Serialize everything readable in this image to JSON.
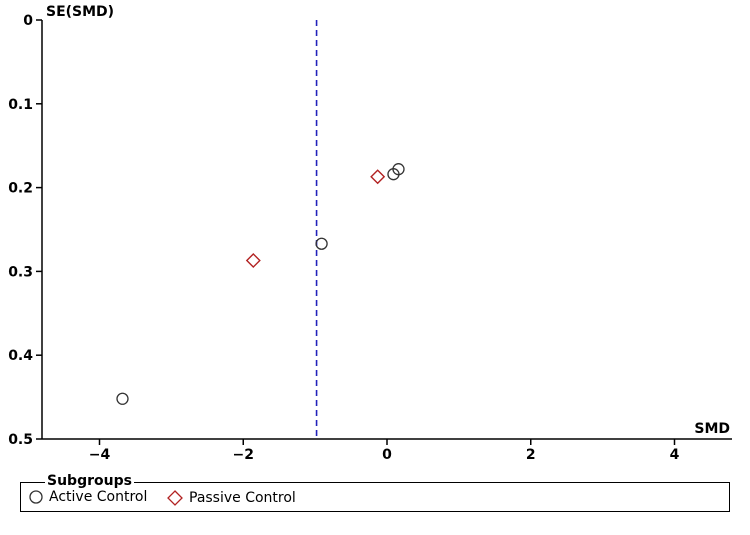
{
  "chart_data": {
    "type": "scatter",
    "xlabel": "SMD",
    "ylabel": "SE(SMD)",
    "xlim": [
      -4.8,
      4.8
    ],
    "ylim": [
      0,
      0.5
    ],
    "y_inverted": true,
    "x_ticks": [
      -4,
      -2,
      0,
      2,
      4
    ],
    "x_tick_labels": [
      "-4",
      "-2",
      "0",
      "2",
      "4"
    ],
    "y_ticks": [
      0,
      0.1,
      0.2,
      0.3,
      0.4,
      0.5
    ],
    "y_tick_labels": [
      "0",
      "0.1",
      "0.2",
      "0.3",
      "0.4",
      "0.5"
    ],
    "reference_line": {
      "x": -0.98,
      "style": "dashed",
      "color": "#2222bb"
    },
    "grid": false,
    "legend_position": "bottom",
    "series": [
      {
        "name": "Active Control",
        "marker": "circle",
        "color": "#333333",
        "points": [
          {
            "x": -3.68,
            "y": 0.452
          },
          {
            "x": -0.91,
            "y": 0.267
          },
          {
            "x": 0.09,
            "y": 0.184
          },
          {
            "x": 0.16,
            "y": 0.178
          }
        ]
      },
      {
        "name": "Passive Control",
        "marker": "diamond",
        "color": "#b22222",
        "points": [
          {
            "x": -1.86,
            "y": 0.287
          },
          {
            "x": -0.13,
            "y": 0.187
          }
        ]
      }
    ]
  },
  "legend": {
    "title": "Subgroups",
    "items": [
      {
        "label": "Active Control",
        "marker": "circle-icon",
        "color": "#333333"
      },
      {
        "label": "Passive Control",
        "marker": "diamond-icon",
        "color": "#b22222"
      }
    ]
  }
}
